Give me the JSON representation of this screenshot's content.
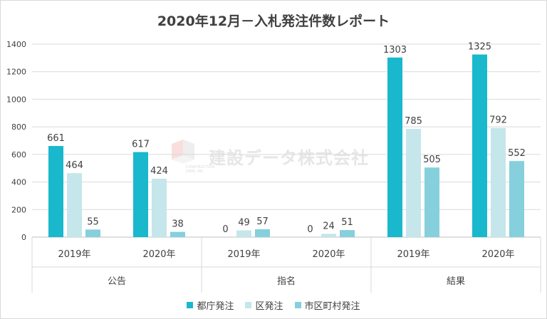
{
  "title": "2020年12月－入札発注件数レポート",
  "watermark": {
    "text": "建設データ株式会社",
    "logo_text": "CONSTRUCTION DATA, INC."
  },
  "legend": [
    {
      "label": "都庁発注",
      "color": "#1ab8cc"
    },
    {
      "label": "区発注",
      "color": "#c5e6eb"
    },
    {
      "label": "市区町村発注",
      "color": "#85d0dc"
    }
  ],
  "chart_data": {
    "type": "bar",
    "title": "2020年12月－入札発注件数レポート",
    "ylim": [
      0,
      1400
    ],
    "yticks": [
      0,
      200,
      400,
      600,
      800,
      1000,
      1200,
      1400
    ],
    "grid": true,
    "legend_position": "bottom",
    "groups": [
      {
        "label": "公告",
        "categories": [
          "2019年",
          "2020年"
        ]
      },
      {
        "label": "指名",
        "categories": [
          "2019年",
          "2020年"
        ]
      },
      {
        "label": "結果",
        "categories": [
          "2019年",
          "2020年"
        ]
      }
    ],
    "categories": [
      "2019年",
      "2020年",
      "2019年",
      "2020年",
      "2019年",
      "2020年"
    ],
    "series": [
      {
        "name": "都庁発注",
        "color": "#1ab8cc",
        "values": [
          661,
          617,
          0,
          0,
          1303,
          1325
        ]
      },
      {
        "name": "区発注",
        "color": "#c5e6eb",
        "values": [
          464,
          424,
          49,
          24,
          785,
          792
        ]
      },
      {
        "name": "市区町村発注",
        "color": "#85d0dc",
        "values": [
          55,
          38,
          57,
          51,
          505,
          552
        ]
      }
    ]
  }
}
